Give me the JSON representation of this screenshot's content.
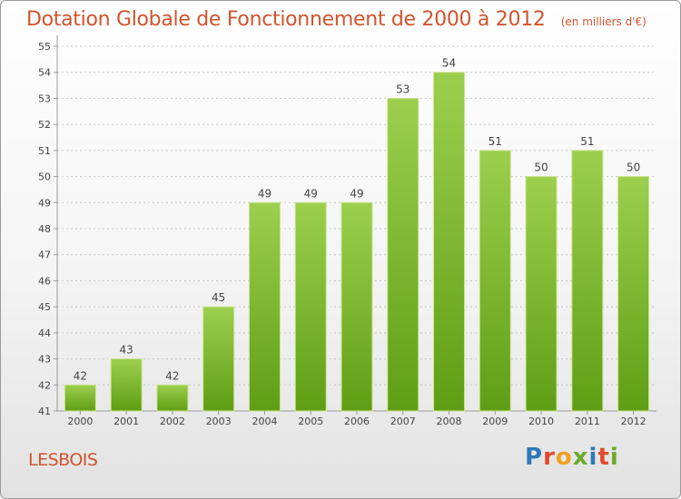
{
  "header": {
    "title": "Dotation Globale de Fonctionnement de 2000 à 2012",
    "subtitle": "(en milliers d'€)"
  },
  "footer": {
    "commune": "LESBOIS",
    "logo": "Proxiti"
  },
  "colors": {
    "bar_top": "#9ccf4e",
    "bar_bottom": "#5f9e14",
    "bar_stroke": "#c9e690",
    "title": "#d2542c",
    "axis": "#9a9a9a",
    "grid": "#c8c8c8"
  },
  "chart_data": {
    "type": "bar",
    "categories": [
      "2000",
      "2001",
      "2002",
      "2003",
      "2004",
      "2005",
      "2006",
      "2007",
      "2008",
      "2009",
      "2010",
      "2011",
      "2012"
    ],
    "values": [
      42,
      43,
      42,
      45,
      49,
      49,
      49,
      53,
      54,
      51,
      50,
      51,
      50
    ],
    "ylim": [
      41,
      55
    ],
    "yticks": [
      41,
      42,
      43,
      44,
      45,
      46,
      47,
      48,
      49,
      50,
      51,
      52,
      53,
      54,
      55
    ],
    "grid": true,
    "data_labels": true
  }
}
